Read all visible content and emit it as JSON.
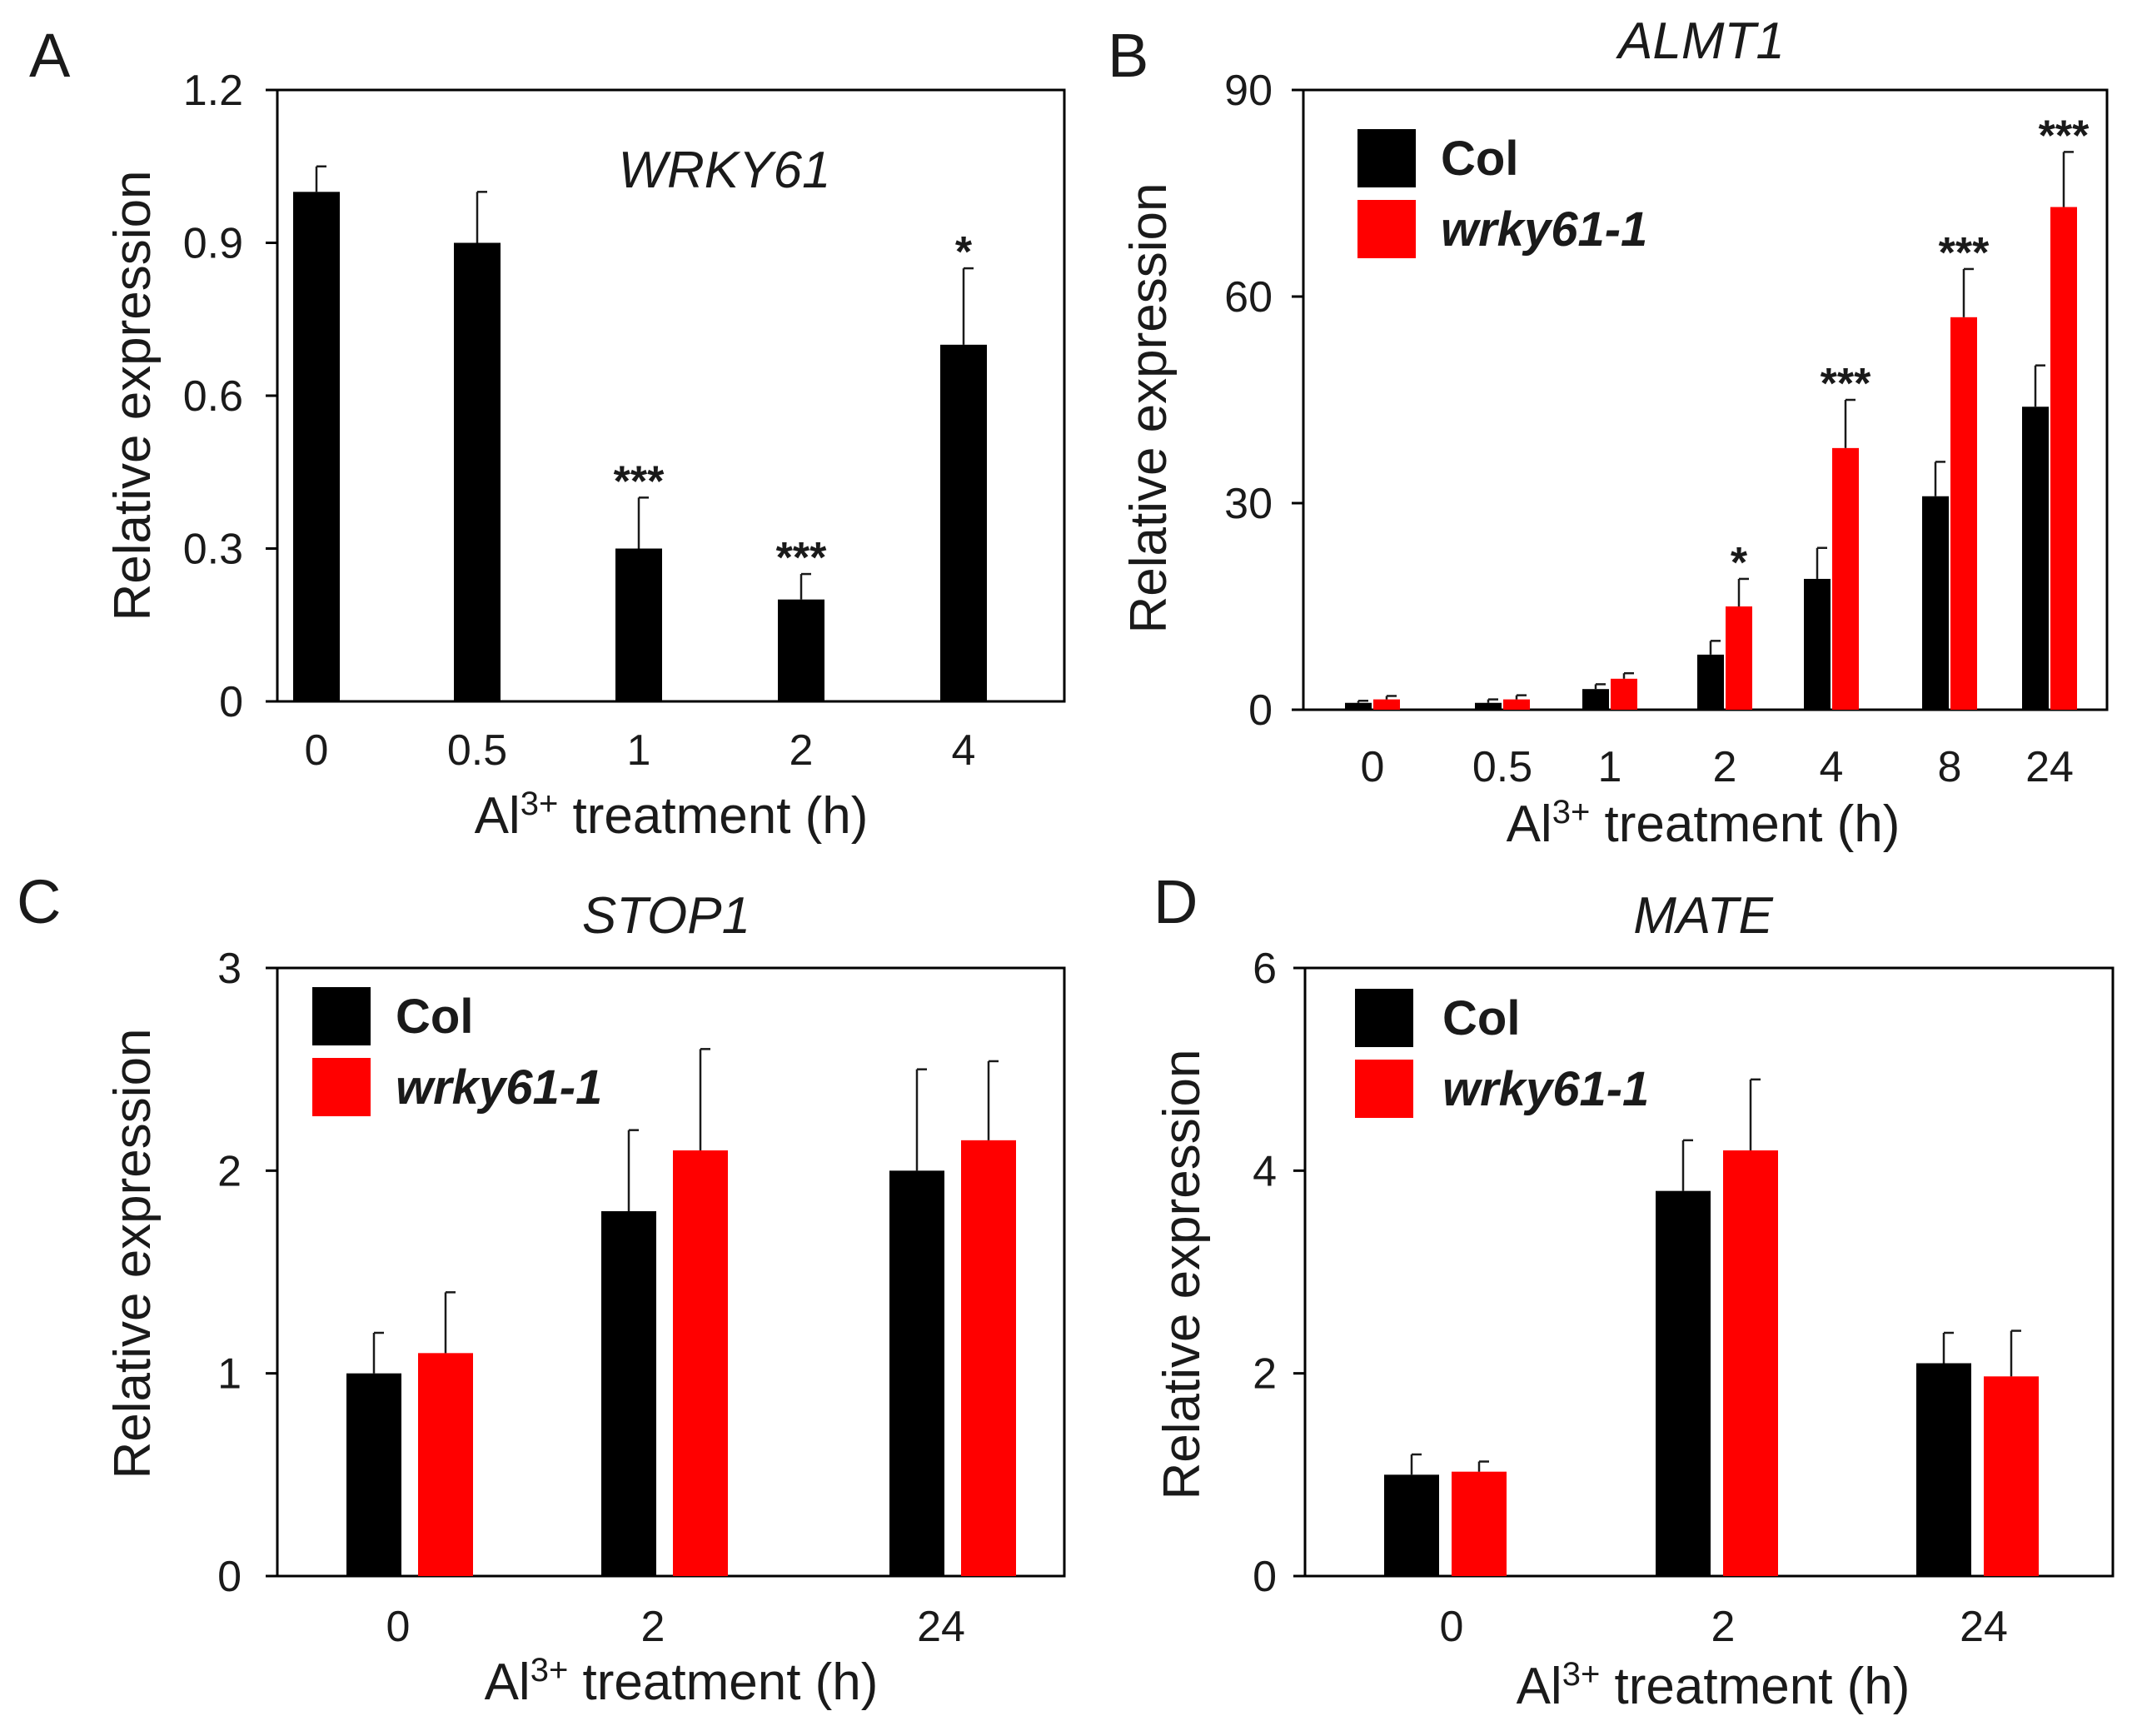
{
  "chart_data": [
    {
      "panel": "A",
      "type": "bar",
      "title": "WRKY61",
      "xlabel_prefix": "Al",
      "xlabel_sup": "3+",
      "xlabel_suffix": " treatment (h)",
      "ylabel": "Relative expression",
      "ylim": [
        0,
        1.2
      ],
      "yticks": [
        "0",
        "0.3",
        "0.6",
        "0.9",
        "1.2"
      ],
      "categories": [
        "0",
        "0.5",
        "1",
        "2",
        "4"
      ],
      "series": [
        {
          "color": "#000000",
          "values": [
            1.0,
            0.9,
            0.3,
            0.2,
            0.7
          ],
          "errors": [
            0.05,
            0.1,
            0.1,
            0.05,
            0.15
          ],
          "sig": [
            "",
            "",
            "***",
            "***",
            "*"
          ]
        }
      ],
      "legend": null,
      "grid": false
    },
    {
      "panel": "B",
      "type": "bar",
      "title": "ALMT1",
      "xlabel_prefix": "Al",
      "xlabel_sup": "3+",
      "xlabel_suffix": " treatment (h)",
      "ylabel": "Relative expression",
      "ylim": [
        0,
        90
      ],
      "yticks": [
        "0",
        "30",
        "60",
        "90"
      ],
      "categories": [
        "0",
        "0.5",
        "1",
        "2",
        "4",
        "8",
        "24"
      ],
      "series": [
        {
          "name": "Col",
          "color": "#000000",
          "values": [
            1,
            1,
            3,
            8,
            19,
            31,
            44
          ],
          "errors": [
            0.3,
            0.5,
            0.7,
            2,
            4.5,
            5,
            6
          ],
          "sig": [
            "",
            "",
            "",
            "",
            "",
            "",
            ""
          ]
        },
        {
          "name": "wrky61-1",
          "color": "#ff0000",
          "values": [
            1.5,
            1.5,
            4.5,
            15,
            38,
            57,
            73
          ],
          "errors": [
            0.5,
            0.6,
            0.8,
            4,
            7,
            7,
            8
          ],
          "sig": [
            "",
            "",
            "",
            "*",
            "***",
            "***",
            "***"
          ]
        }
      ],
      "legend": "top-left",
      "grid": false
    },
    {
      "panel": "C",
      "type": "bar",
      "title": "STOP1",
      "xlabel_prefix": "Al",
      "xlabel_sup": "3+",
      "xlabel_suffix": " treatment (h)",
      "ylabel": "Relative expression",
      "ylim": [
        0,
        3
      ],
      "yticks": [
        "0",
        "1",
        "2",
        "3"
      ],
      "categories": [
        "0",
        "2",
        "24"
      ],
      "series": [
        {
          "name": "Col",
          "color": "#000000",
          "values": [
            1.0,
            1.8,
            2.0
          ],
          "errors": [
            0.2,
            0.4,
            0.5
          ],
          "sig": [
            "",
            "",
            ""
          ]
        },
        {
          "name": "wrky61-1",
          "color": "#ff0000",
          "values": [
            1.1,
            2.1,
            2.15
          ],
          "errors": [
            0.3,
            0.5,
            0.39
          ],
          "sig": [
            "",
            "",
            ""
          ]
        }
      ],
      "legend": "top-left",
      "grid": false
    },
    {
      "panel": "D",
      "type": "bar",
      "title": "MATE",
      "xlabel_prefix": "Al",
      "xlabel_sup": "3+",
      "xlabel_suffix": " treatment (h)",
      "ylabel": "Relative expression",
      "ylim": [
        0,
        6
      ],
      "yticks": [
        "0",
        "2",
        "4",
        "6"
      ],
      "categories": [
        "0",
        "2",
        "24"
      ],
      "series": [
        {
          "name": "Col",
          "color": "#000000",
          "values": [
            1.0,
            3.8,
            2.1
          ],
          "errors": [
            0.2,
            0.5,
            0.3
          ],
          "sig": [
            "",
            "",
            ""
          ]
        },
        {
          "name": "wrky61-1",
          "color": "#ff0000",
          "values": [
            1.03,
            4.2,
            1.97
          ],
          "errors": [
            0.1,
            0.7,
            0.45
          ],
          "sig": [
            "",
            "",
            ""
          ]
        }
      ],
      "legend": "top-left",
      "grid": false
    }
  ]
}
